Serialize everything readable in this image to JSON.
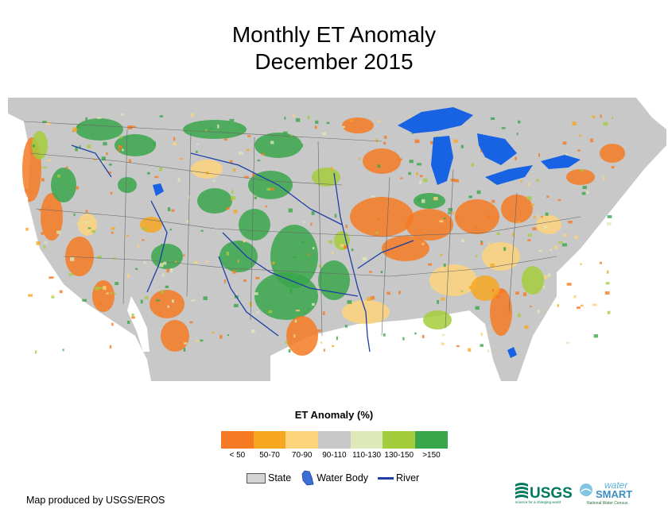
{
  "title": {
    "line1": "Monthly ET Anomaly",
    "line2": "December 2015"
  },
  "legend": {
    "title": "ET Anomaly (%)",
    "classes": [
      {
        "label": "< 50",
        "color": "#f57a23"
      },
      {
        "label": "50-70",
        "color": "#f6a722"
      },
      {
        "label": "70-90",
        "color": "#fdd47b"
      },
      {
        "label": "90-110",
        "color": "#c8c8c8"
      },
      {
        "label": "110-130",
        "color": "#dde9b8"
      },
      {
        "label": "130-150",
        "color": "#a3cd3c"
      },
      {
        "label": ">150",
        "color": "#3aa64a"
      }
    ],
    "layers": {
      "state": "State",
      "water": "Water Body",
      "river": "River"
    }
  },
  "colors": {
    "background": "#c8c8c8",
    "water": "#1763e3",
    "river": "#1c3fa6",
    "border": "#666666"
  },
  "credit": "Map produced by USGS/EROS",
  "logos": {
    "usgs": "USGS",
    "usgs_tagline": "science for a changing world",
    "ws1": "water",
    "ws2": "SMART",
    "ws3": "National Water Census"
  }
}
